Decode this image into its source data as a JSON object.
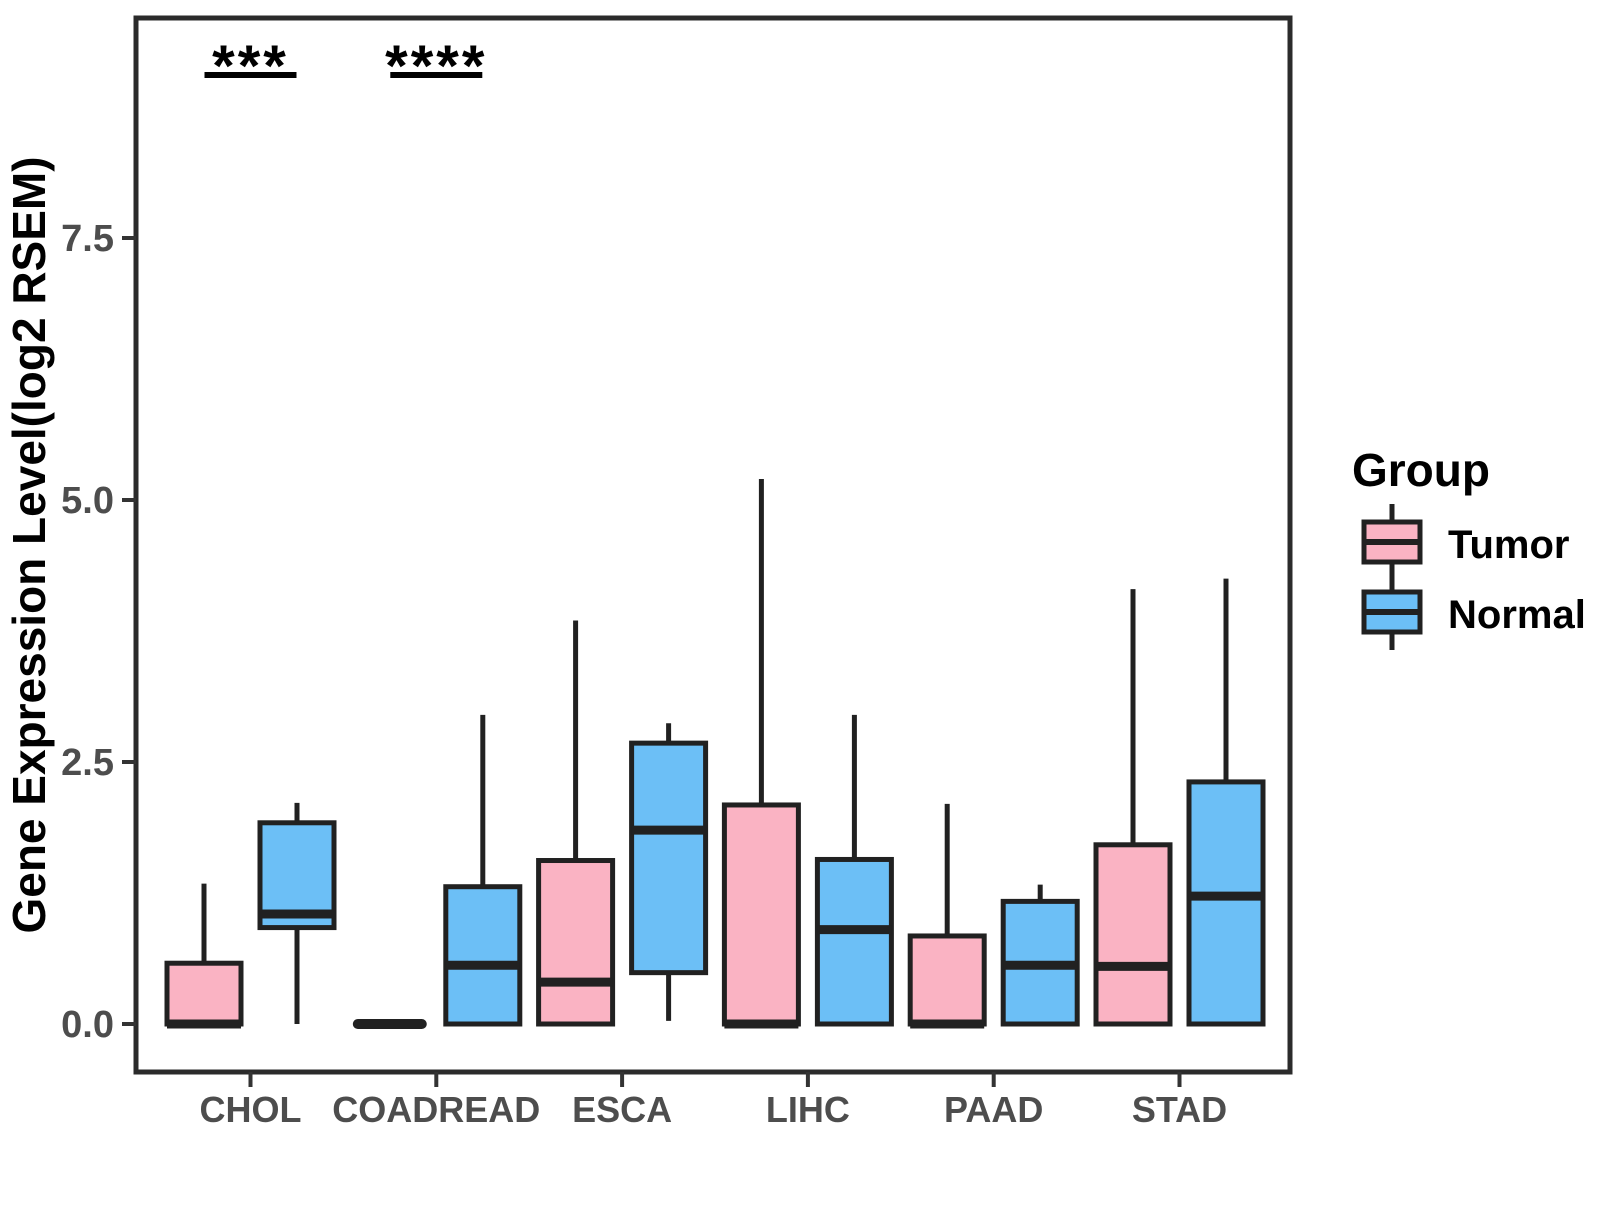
{
  "chart_data": {
    "type": "boxplot",
    "title": "",
    "xlabel": "",
    "ylabel": "Gene Expression Level(log2 RSEM)",
    "categories": [
      "CHOL",
      "COADREAD",
      "ESCA",
      "LIHC",
      "PAAD",
      "STAD"
    ],
    "y_ticks": [
      0.0,
      2.5,
      5.0,
      7.5
    ],
    "y_tick_labels": [
      "0.0",
      "2.5",
      "5.0",
      "7.5"
    ],
    "ylim": [
      -0.45,
      9.6
    ],
    "grid": "off",
    "legend_position": "right",
    "series": [
      {
        "name": "Tumor",
        "color": "#FAB3C3",
        "boxes": [
          {
            "category": "CHOL",
            "whisker_low": 0,
            "q1": 0,
            "median": 0,
            "q3": 0.58,
            "whisker_high": 1.34
          },
          {
            "category": "COADREAD",
            "whisker_low": 0,
            "q1": 0,
            "median": 0,
            "q3": 0,
            "whisker_high": 0
          },
          {
            "category": "ESCA",
            "whisker_low": 0,
            "q1": 0,
            "median": 0.4,
            "q3": 1.56,
            "whisker_high": 3.85
          },
          {
            "category": "LIHC",
            "whisker_low": 0,
            "q1": 0,
            "median": 0,
            "q3": 2.09,
            "whisker_high": 5.2
          },
          {
            "category": "PAAD",
            "whisker_low": 0,
            "q1": 0,
            "median": 0,
            "q3": 0.84,
            "whisker_high": 2.1
          },
          {
            "category": "STAD",
            "whisker_low": 0,
            "q1": 0,
            "median": 0.55,
            "q3": 1.71,
            "whisker_high": 4.15
          }
        ]
      },
      {
        "name": "Normal",
        "color": "#6CBFF6",
        "boxes": [
          {
            "category": "CHOL",
            "whisker_low": 0,
            "q1": 0.92,
            "median": 1.05,
            "q3": 1.92,
            "whisker_high": 2.11
          },
          {
            "category": "COADREAD",
            "whisker_low": 0,
            "q1": 0,
            "median": 0.56,
            "q3": 1.31,
            "whisker_high": 2.95
          },
          {
            "category": "ESCA",
            "whisker_low": 0.03,
            "q1": 0.49,
            "median": 1.85,
            "q3": 2.68,
            "whisker_high": 2.87
          },
          {
            "category": "LIHC",
            "whisker_low": 0,
            "q1": 0,
            "median": 0.9,
            "q3": 1.57,
            "whisker_high": 2.95
          },
          {
            "category": "PAAD",
            "whisker_low": 0,
            "q1": 0,
            "median": 0.56,
            "q3": 1.17,
            "whisker_high": 1.33
          },
          {
            "category": "STAD",
            "whisker_low": 0,
            "q1": 0,
            "median": 1.22,
            "q3": 2.31,
            "whisker_high": 4.25
          }
        ]
      }
    ],
    "significance": [
      {
        "category": "CHOL",
        "label": "***"
      },
      {
        "category": "COADREAD",
        "label": "****"
      }
    ],
    "legend": {
      "title": "Group",
      "entries": [
        {
          "label": "Tumor",
          "color": "#FAB3C3"
        },
        {
          "label": "Normal",
          "color": "#6CBFF6"
        }
      ]
    },
    "colors": {
      "tumor_fill": "#FAB3C3",
      "normal_fill": "#6CBFF6",
      "line": "#212121",
      "panel_border": "#2b2b2b",
      "axis_text": "#4d4d4d",
      "background": "#ffffff"
    }
  }
}
